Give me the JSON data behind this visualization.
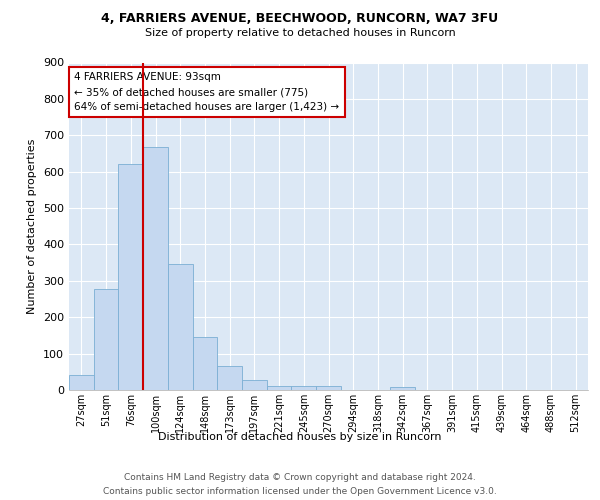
{
  "title_line1": "4, FARRIERS AVENUE, BEECHWOOD, RUNCORN, WA7 3FU",
  "title_line2": "Size of property relative to detached houses in Runcorn",
  "xlabel": "Distribution of detached houses by size in Runcorn",
  "ylabel": "Number of detached properties",
  "bar_labels": [
    "27sqm",
    "51sqm",
    "76sqm",
    "100sqm",
    "124sqm",
    "148sqm",
    "173sqm",
    "197sqm",
    "221sqm",
    "245sqm",
    "270sqm",
    "294sqm",
    "318sqm",
    "342sqm",
    "367sqm",
    "391sqm",
    "415sqm",
    "439sqm",
    "464sqm",
    "488sqm",
    "512sqm"
  ],
  "bar_values": [
    42,
    278,
    620,
    668,
    345,
    145,
    65,
    28,
    12,
    10,
    10,
    0,
    0,
    8,
    0,
    0,
    0,
    0,
    0,
    0,
    0
  ],
  "bar_color": "#c5d8f0",
  "bar_edgecolor": "#7bafd4",
  "annotation_line1": "4 FARRIERS AVENUE: 93sqm",
  "annotation_line2": "← 35% of detached houses are smaller (775)",
  "annotation_line3": "64% of semi-detached houses are larger (1,423) →",
  "vline_color": "#cc0000",
  "annotation_box_color": "#ffffff",
  "annotation_box_edgecolor": "#cc0000",
  "ylim": [
    0,
    900
  ],
  "yticks": [
    0,
    100,
    200,
    300,
    400,
    500,
    600,
    700,
    800,
    900
  ],
  "footer_line1": "Contains HM Land Registry data © Crown copyright and database right 2024.",
  "footer_line2": "Contains public sector information licensed under the Open Government Licence v3.0.",
  "bg_color": "#dce8f5",
  "fig_bg_color": "#ffffff"
}
